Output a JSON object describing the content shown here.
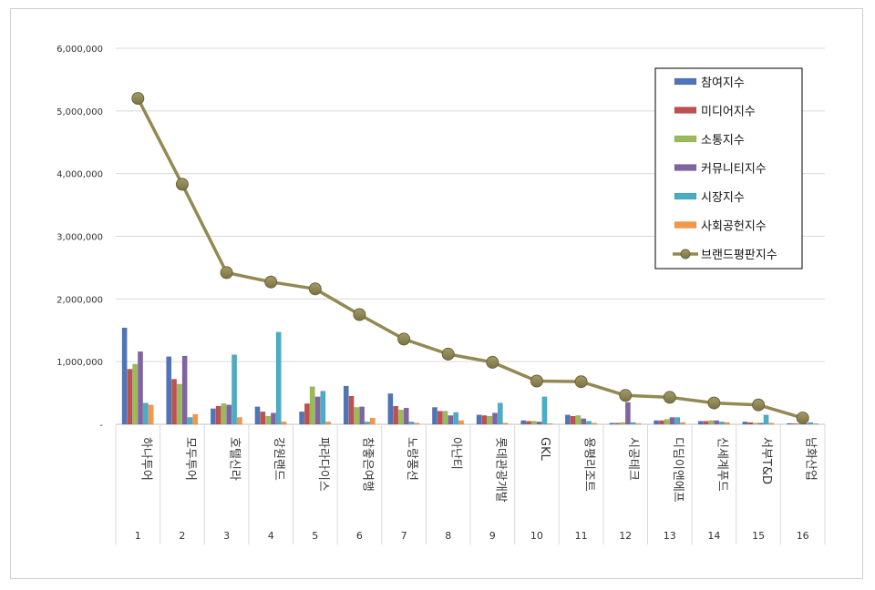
{
  "chart_data": {
    "type": "bar",
    "title": "",
    "xlabel": "",
    "ylabel": "",
    "ylim": [
      0,
      6000000
    ],
    "yticks": [
      0,
      1000000,
      2000000,
      3000000,
      4000000,
      5000000,
      6000000
    ],
    "ytick_labels": [
      "-",
      "1,000,000",
      "2,000,000",
      "3,000,000",
      "4,000,000",
      "5,000,000",
      "6,000,000"
    ],
    "grid": true,
    "legend_position": "top-right",
    "categories": [
      "하나투어",
      "모두투어",
      "호텔신라",
      "강원랜드",
      "파라다이스",
      "참좋은여행",
      "노랑풍선",
      "아난티",
      "롯데관광개발",
      "GKL",
      "용평리조트",
      "시공테크",
      "디딤이앤에프",
      "신세계푸드",
      "서부T&D",
      "남화산업"
    ],
    "ranks": [
      "1",
      "2",
      "3",
      "4",
      "5",
      "6",
      "7",
      "8",
      "9",
      "10",
      "11",
      "12",
      "13",
      "14",
      "15",
      "16"
    ],
    "series": [
      {
        "name": "참여지수",
        "kind": "bar",
        "color": "#4f74b8",
        "values": [
          1540000,
          1080000,
          250000,
          280000,
          200000,
          610000,
          490000,
          270000,
          150000,
          60000,
          150000,
          20000,
          60000,
          50000,
          40000,
          15000
        ]
      },
      {
        "name": "미디어지수",
        "kind": "bar",
        "color": "#c0504d",
        "values": [
          880000,
          720000,
          290000,
          200000,
          330000,
          450000,
          290000,
          210000,
          140000,
          50000,
          130000,
          20000,
          60000,
          50000,
          30000,
          10000
        ]
      },
      {
        "name": "소통지수",
        "kind": "bar",
        "color": "#9bbb59",
        "values": [
          960000,
          640000,
          330000,
          130000,
          600000,
          270000,
          230000,
          210000,
          130000,
          50000,
          140000,
          30000,
          80000,
          60000,
          20000,
          10000
        ]
      },
      {
        "name": "커뮤니티지수",
        "kind": "bar",
        "color": "#8064a2",
        "values": [
          1160000,
          1090000,
          310000,
          180000,
          440000,
          280000,
          260000,
          140000,
          180000,
          40000,
          90000,
          350000,
          110000,
          60000,
          20000,
          10000
        ]
      },
      {
        "name": "시장지수",
        "kind": "bar",
        "color": "#4bacc6",
        "values": [
          340000,
          110000,
          1110000,
          1470000,
          530000,
          40000,
          40000,
          190000,
          340000,
          440000,
          50000,
          30000,
          110000,
          40000,
          150000,
          30000
        ]
      },
      {
        "name": "사회공헌지수",
        "kind": "bar",
        "color": "#f79646",
        "values": [
          310000,
          160000,
          110000,
          40000,
          40000,
          100000,
          20000,
          60000,
          20000,
          10000,
          20000,
          10000,
          30000,
          30000,
          20000,
          10000
        ]
      },
      {
        "name": "브랜드평판지수",
        "kind": "line",
        "color": "#938953",
        "values": [
          5200000,
          3830000,
          2420000,
          2270000,
          2160000,
          1750000,
          1360000,
          1120000,
          990000,
          690000,
          680000,
          460000,
          430000,
          340000,
          310000,
          100000
        ]
      }
    ]
  }
}
